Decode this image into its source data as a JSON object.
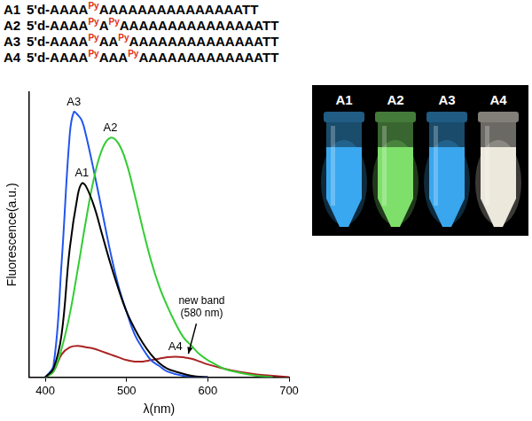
{
  "chart_data": {
    "type": "line",
    "xlabel": "λ(nm)",
    "ylabel": "Fluorescence(a.u.)",
    "xlim": [
      380,
      700
    ],
    "xticks": [
      400,
      500,
      600,
      700
    ],
    "ylim": [
      0,
      100
    ],
    "yticks": [],
    "tick_labels": "x",
    "grid": false,
    "series": [
      {
        "name": "A1",
        "color": "#000000",
        "x": [
          400,
          410,
          420,
          430,
          440,
          445,
          450,
          460,
          470,
          480,
          490,
          500,
          510,
          520,
          530,
          540,
          550,
          560,
          580,
          600
        ],
        "values": [
          0,
          3,
          15,
          45,
          64,
          68,
          67,
          60,
          50,
          40,
          31,
          23,
          17,
          12,
          8,
          5,
          3,
          2,
          0.5,
          0
        ]
      },
      {
        "name": "A2",
        "color": "#33cc33",
        "x": [
          400,
          410,
          420,
          430,
          440,
          450,
          460,
          470,
          480,
          490,
          500,
          510,
          520,
          530,
          540,
          550,
          560,
          570,
          580,
          590,
          600,
          620,
          640,
          660,
          680
        ],
        "values": [
          0,
          2,
          10,
          22,
          38,
          55,
          70,
          80,
          84,
          82,
          75,
          64,
          52,
          41,
          32,
          25,
          19,
          14,
          11,
          8,
          6,
          3,
          1.5,
          0.5,
          0
        ]
      },
      {
        "name": "A3",
        "color": "#2255ee",
        "x": [
          400,
          410,
          420,
          430,
          435,
          440,
          445,
          450,
          460,
          470,
          480,
          490,
          500,
          510,
          520,
          530,
          540,
          550,
          570,
          600
        ],
        "values": [
          0,
          4,
          40,
          85,
          93,
          92,
          90,
          85,
          72,
          58,
          44,
          32,
          23,
          15,
          10,
          6,
          4,
          2,
          0.5,
          0
        ]
      },
      {
        "name": "A4",
        "color": "#aa2222",
        "x": [
          400,
          410,
          420,
          430,
          440,
          450,
          460,
          470,
          480,
          490,
          500,
          510,
          520,
          530,
          540,
          550,
          560,
          570,
          580,
          590,
          600,
          620,
          640,
          660,
          680,
          700
        ],
        "values": [
          0,
          2,
          8,
          10.5,
          11,
          10.5,
          10,
          9,
          8,
          7,
          6,
          5.5,
          5.5,
          6,
          6.5,
          7,
          7.2,
          7,
          6.5,
          5.5,
          4.5,
          3,
          1.8,
          1,
          0.5,
          0
        ]
      }
    ],
    "annotations": [
      {
        "text": [
          "new band",
          "(580 nm)"
        ],
        "x": 575,
        "y": 7
      }
    ]
  },
  "sequences": [
    {
      "name": "A1",
      "parts": [
        {
          "text": "5'd-AAAA"
        },
        {
          "text": "Py",
          "superscript": true,
          "color": "#e03010"
        },
        {
          "text": "AAAAAAAAAAAAAAATT"
        }
      ]
    },
    {
      "name": "A2",
      "parts": [
        {
          "text": "5'd-AAAA"
        },
        {
          "text": "Py",
          "superscript": true,
          "color": "#e03010"
        },
        {
          "text": "A"
        },
        {
          "text": "Py",
          "superscript": true,
          "color": "#e03010"
        },
        {
          "text": "AAAAAAAAAAAAAAATT"
        }
      ]
    },
    {
      "name": "A3",
      "parts": [
        {
          "text": "5'd-AAAA"
        },
        {
          "text": "Py",
          "superscript": true,
          "color": "#e03010"
        },
        {
          "text": "AA"
        },
        {
          "text": "Py",
          "superscript": true,
          "color": "#e03010"
        },
        {
          "text": "AAAAAAAAAAAAAATT"
        }
      ]
    },
    {
      "name": "A4",
      "parts": [
        {
          "text": "5'd-AAAA"
        },
        {
          "text": "Py",
          "superscript": true,
          "color": "#e03010"
        },
        {
          "text": "AAA"
        },
        {
          "text": "Py",
          "superscript": true,
          "color": "#e03010"
        },
        {
          "text": "AAAAAAAAAAAAATT"
        }
      ]
    }
  ],
  "photo": {
    "tubes": [
      {
        "label": "A1",
        "color": "#3aa8f0"
      },
      {
        "label": "A2",
        "color": "#7ee06a"
      },
      {
        "label": "A3",
        "color": "#39a6ee"
      },
      {
        "label": "A4",
        "color": "#ece8dc"
      }
    ]
  }
}
